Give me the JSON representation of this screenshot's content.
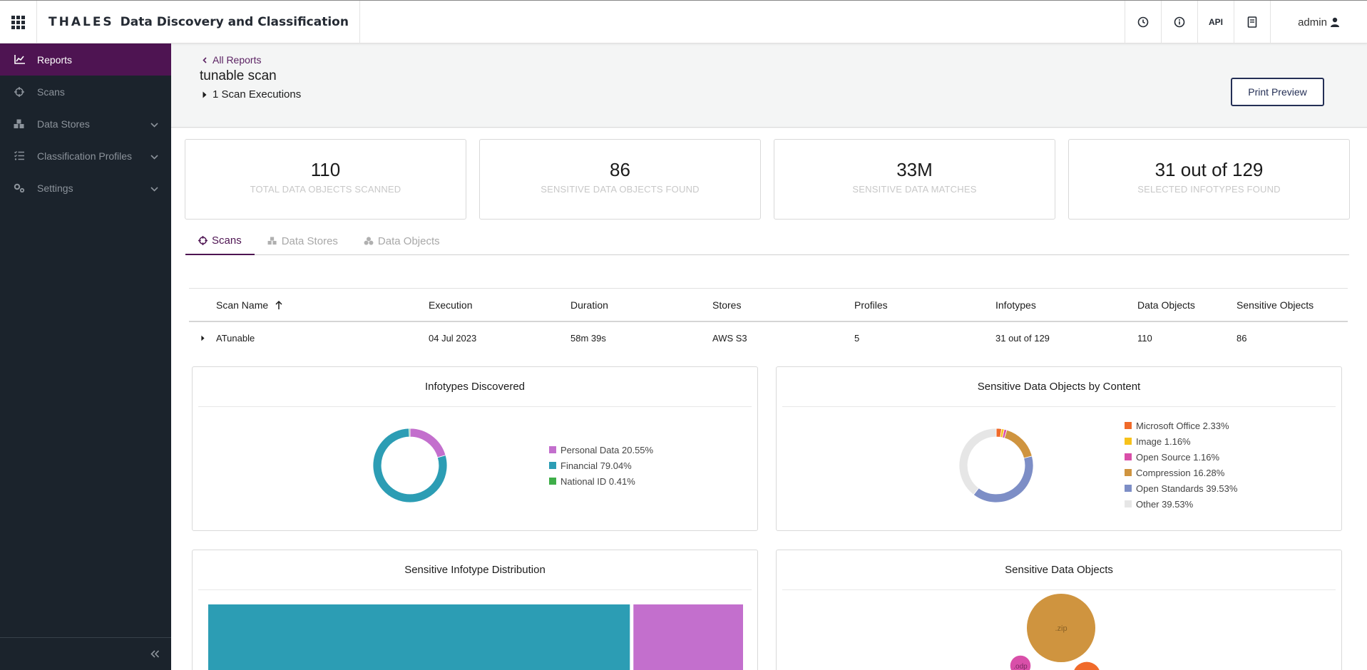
{
  "app": {
    "logo": "THALES",
    "name": "Data Discovery and Classification",
    "api_label": "API",
    "user": "admin"
  },
  "sidebar": {
    "items": [
      {
        "label": "Reports",
        "icon": "chart-line-icon",
        "active": true
      },
      {
        "label": "Scans",
        "icon": "crosshair-icon"
      },
      {
        "label": "Data Stores",
        "icon": "cubes-icon",
        "expandable": true
      },
      {
        "label": "Classification Profiles",
        "icon": "list-check-icon",
        "expandable": true
      },
      {
        "label": "Settings",
        "icon": "gears-icon",
        "expandable": true
      }
    ]
  },
  "header": {
    "back_label": "All Reports",
    "title": "tunable scan",
    "executions_label": "1 Scan Executions",
    "print_label": "Print Preview"
  },
  "summary": [
    {
      "value": "110",
      "label": "TOTAL DATA OBJECTS SCANNED"
    },
    {
      "value": "86",
      "label": "SENSITIVE DATA OBJECTS FOUND"
    },
    {
      "value": "33M",
      "label": "SENSITIVE DATA MATCHES"
    },
    {
      "value": "31 out of 129",
      "label": "SELECTED INFOTYPES FOUND"
    }
  ],
  "tabs": [
    {
      "label": "Scans",
      "active": true
    },
    {
      "label": "Data Stores"
    },
    {
      "label": "Data Objects"
    }
  ],
  "table": {
    "columns": [
      "Scan Name",
      "Execution",
      "Duration",
      "Stores",
      "Profiles",
      "Infotypes",
      "Data Objects",
      "Sensitive Objects"
    ],
    "rows": [
      {
        "scan_name": "ATunable",
        "execution": "04 Jul 2023",
        "duration": "58m 39s",
        "stores": "AWS S3",
        "profiles": "5",
        "infotypes": "31 out of 129",
        "data_objects": "110",
        "sensitive_objects": "86"
      }
    ]
  },
  "colors": {
    "accent": "#4e1452",
    "sidebar_bg": "#1b232c",
    "primary_button": "#242f55"
  },
  "chart_data": [
    {
      "type": "pie",
      "title": "Infotypes Discovered",
      "labels": [
        "Personal Data 20.55%",
        "Financial 79.04%",
        "National ID 0.41%"
      ],
      "values": [
        20.55,
        79.04,
        0.41
      ],
      "colors": [
        "#c36fcd",
        "#2c9db4",
        "#3fae49"
      ],
      "legend": "right"
    },
    {
      "type": "pie",
      "title": "Sensitive Data Objects by Content",
      "labels": [
        "Microsoft Office 2.33%",
        "Image 1.16%",
        "Open Source 1.16%",
        "Compression 16.28%",
        "Open Standards 39.53%",
        "Other 39.53%"
      ],
      "values": [
        2.33,
        1.16,
        1.16,
        16.28,
        39.53,
        39.53
      ],
      "colors": [
        "#f06a2a",
        "#f7c21b",
        "#d94fa9",
        "#cf943f",
        "#7d8ec6",
        "#e6e6e6"
      ],
      "legend": "right"
    },
    {
      "type": "heatmap",
      "title": "Sensitive Infotype Distribution",
      "labels": [
        "Financial",
        "Personal Data"
      ],
      "values": [
        79.04,
        20.55
      ],
      "colors": [
        "#2c9db4",
        "#c36fcd"
      ]
    },
    {
      "type": "scatter",
      "title": "Sensitive Data Objects",
      "labels": [
        ".zip",
        ".odp",
        ""
      ],
      "values": [
        16.28,
        1.16,
        2.33
      ],
      "colors": [
        "#cf943f",
        "#d94fa9",
        "#f06a2a"
      ]
    }
  ]
}
